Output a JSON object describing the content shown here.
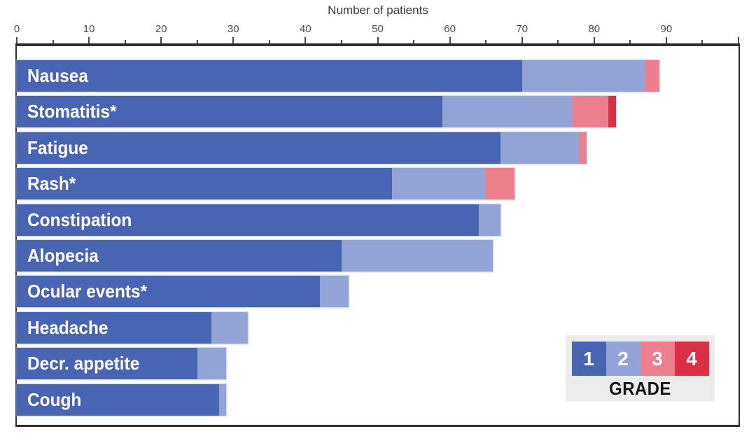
{
  "chart_data": {
    "type": "bar",
    "orientation": "horizontal",
    "stacked": true,
    "title": "Number of patients",
    "categories": [
      "Nausea",
      "Stomatitis*",
      "Fatigue",
      "Rash*",
      "Constipation",
      "Alopecia",
      "Ocular events*",
      "Headache",
      "Decr. appetite",
      "Cough"
    ],
    "series": [
      {
        "name": "Grade 1",
        "color": "#4765b2",
        "values": [
          70,
          59,
          67,
          52,
          64,
          45,
          42,
          27,
          25,
          28
        ]
      },
      {
        "name": "Grade 2",
        "color": "#93a3d5",
        "values": [
          17,
          18,
          11,
          13,
          3,
          21,
          4,
          5,
          4,
          1
        ]
      },
      {
        "name": "Grade 3",
        "color": "#ec7f8e",
        "values": [
          2,
          5,
          1,
          4,
          0,
          0,
          0,
          0,
          0,
          0
        ]
      },
      {
        "name": "Grade 4",
        "color": "#d93048",
        "values": [
          0,
          1,
          0,
          0,
          0,
          0,
          0,
          0,
          0,
          0
        ]
      }
    ],
    "xlim": [
      0,
      100
    ],
    "x_major_ticks": [
      0,
      10,
      20,
      30,
      40,
      50,
      60,
      70,
      80,
      90
    ],
    "x_minor_step": 5,
    "legend_position": "bottom-right",
    "grid": false
  },
  "legend": {
    "title": "GRADE",
    "grades": [
      {
        "label": "1",
        "color": "#4765b2"
      },
      {
        "label": "2",
        "color": "#93a3d5"
      },
      {
        "label": "3",
        "color": "#ec7f8e"
      },
      {
        "label": "4",
        "color": "#d93048"
      }
    ]
  },
  "colors": {
    "axis": "#303030",
    "tick_text": "#4a4a4a",
    "bar_label_text": "#ffffff",
    "legend_background": "#ececec",
    "legend_title_text": "#141414",
    "background": "#ffffff"
  }
}
